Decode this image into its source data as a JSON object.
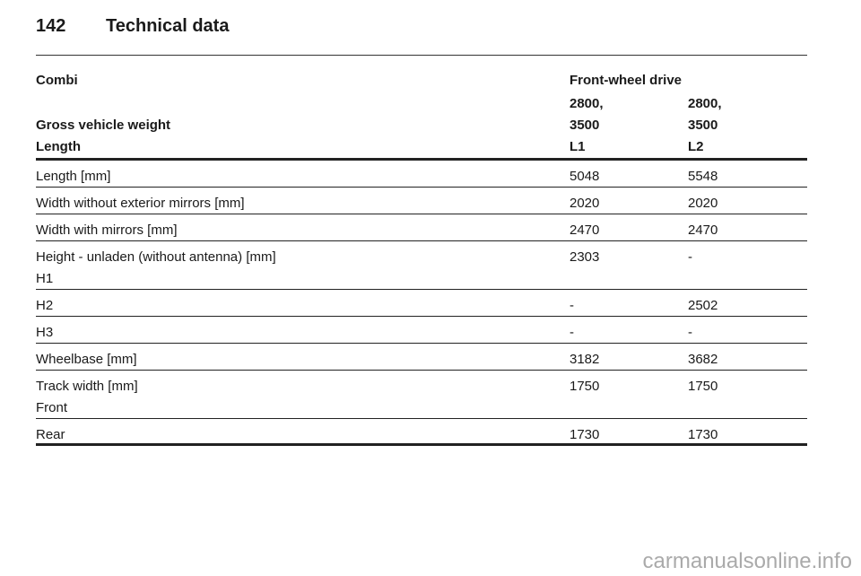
{
  "header": {
    "page_number": "142",
    "title": "Technical data"
  },
  "table": {
    "caption_rows": [
      [
        "Combi",
        "Front-wheel drive"
      ],
      [
        "Gross vehicle weight",
        "2800,\n3500",
        "2800,\n3500"
      ],
      [
        "Length",
        "L1",
        "L2"
      ]
    ],
    "rows": [
      [
        "Length [mm]",
        "5048",
        "5548"
      ],
      [
        "Width without exterior mirrors [mm]",
        "2020",
        "2020"
      ],
      [
        "Width with mirrors [mm]",
        "2470",
        "2470"
      ],
      [
        "Height - unladen (without antenna) [mm]\nH1",
        "2303",
        "-"
      ],
      [
        "H2",
        "-",
        "2502"
      ],
      [
        "H3",
        "-",
        "-"
      ],
      [
        "Wheelbase [mm]",
        "3182",
        "3682"
      ],
      [
        "Track width [mm]\nFront",
        "1750",
        "1750"
      ],
      [
        "Rear",
        "1730",
        "1730"
      ]
    ]
  },
  "watermark": "carmanualsonline.info"
}
